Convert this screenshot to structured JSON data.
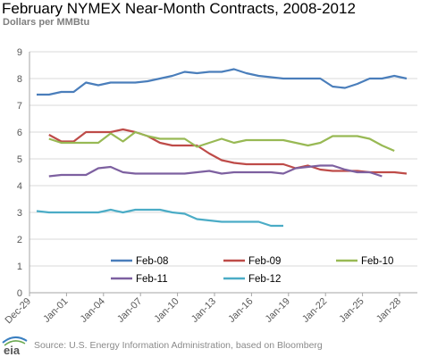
{
  "title": "February NYMEX Near-Month Contracts, 2008-2012",
  "subtitle": "Dollars per MMBtu",
  "source": "Source: U.S. Energy Information  Administration, based on Bloomberg",
  "logo_text": "eia",
  "chart_data": {
    "type": "line",
    "ylim": [
      0,
      9
    ],
    "yticks": [
      0,
      1,
      2,
      3,
      4,
      5,
      6,
      7,
      8,
      9
    ],
    "x_tick_labels": [
      "Dec-29",
      "Jan-01",
      "Jan-04",
      "Jan-07",
      "Jan-10",
      "Jan-13",
      "Jan-16",
      "Jan-19",
      "Jan-22",
      "Jan-25",
      "Jan-28"
    ],
    "x": [
      "Dec-30",
      "Dec-31",
      "Jan-01",
      "Jan-02",
      "Jan-03",
      "Jan-04",
      "Jan-05",
      "Jan-06",
      "Jan-07",
      "Jan-08",
      "Jan-09",
      "Jan-10",
      "Jan-11",
      "Jan-12",
      "Jan-13",
      "Jan-14",
      "Jan-15",
      "Jan-16",
      "Jan-17",
      "Jan-18",
      "Jan-19",
      "Jan-20",
      "Jan-21",
      "Jan-22",
      "Jan-23",
      "Jan-24",
      "Jan-25",
      "Jan-26",
      "Jan-27",
      "Jan-28",
      "Jan-29"
    ],
    "grid": true,
    "legend_position": "bottom",
    "series": [
      {
        "name": "Feb-08",
        "color": "#4a7ebb",
        "values": [
          7.4,
          7.4,
          7.5,
          7.5,
          7.85,
          7.75,
          7.85,
          7.85,
          7.85,
          7.9,
          8.0,
          8.1,
          8.25,
          8.2,
          8.25,
          8.25,
          8.35,
          8.2,
          8.1,
          8.05,
          8.0,
          8.0,
          8.0,
          8.0,
          7.7,
          7.65,
          7.8,
          8.0,
          8.0,
          8.1,
          8.0
        ]
      },
      {
        "name": "Feb-09",
        "color": "#be4b48",
        "values": [
          null,
          5.9,
          5.65,
          5.65,
          6.0,
          6.0,
          6.0,
          6.1,
          6.0,
          5.85,
          5.6,
          5.5,
          5.5,
          5.5,
          5.2,
          4.95,
          4.85,
          4.8,
          4.8,
          4.8,
          4.8,
          4.65,
          4.75,
          4.6,
          4.55,
          4.55,
          4.55,
          4.5,
          4.5,
          4.5,
          4.45
        ]
      },
      {
        "name": "Feb-10",
        "color": "#98b954",
        "values": [
          null,
          5.75,
          5.6,
          5.6,
          5.6,
          5.6,
          5.95,
          5.65,
          6.0,
          5.85,
          5.75,
          5.75,
          5.75,
          5.45,
          5.6,
          5.75,
          5.6,
          5.7,
          5.7,
          5.7,
          5.7,
          5.6,
          5.5,
          5.6,
          5.85,
          5.85,
          5.85,
          5.75,
          5.5,
          5.3,
          null
        ]
      },
      {
        "name": "Feb-11",
        "color": "#7d60a0",
        "values": [
          null,
          4.35,
          4.4,
          4.4,
          4.4,
          4.65,
          4.7,
          4.5,
          4.45,
          4.45,
          4.45,
          4.45,
          4.45,
          4.5,
          4.55,
          4.45,
          4.5,
          4.5,
          4.5,
          4.5,
          4.45,
          4.65,
          4.7,
          4.75,
          4.75,
          4.6,
          4.5,
          4.5,
          4.35,
          null,
          null
        ]
      },
      {
        "name": "Feb-12",
        "color": "#4bacc6",
        "values": [
          3.05,
          3.0,
          3.0,
          3.0,
          3.0,
          3.0,
          3.1,
          3.0,
          3.1,
          3.1,
          3.1,
          3.0,
          2.95,
          2.75,
          2.7,
          2.65,
          2.65,
          2.65,
          2.65,
          2.5,
          2.5,
          null,
          null,
          null,
          null,
          null,
          null,
          null,
          null,
          null,
          null
        ]
      }
    ]
  }
}
